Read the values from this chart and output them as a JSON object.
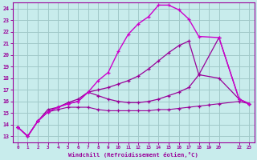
{
  "xlabel": "Windchill (Refroidissement éolien,°C)",
  "ylabel": "",
  "xlim": [
    -0.5,
    23.5
  ],
  "ylim": [
    12.5,
    24.5
  ],
  "xticks": [
    0,
    1,
    2,
    3,
    4,
    5,
    6,
    7,
    8,
    9,
    10,
    11,
    12,
    13,
    14,
    15,
    16,
    17,
    18,
    19,
    20,
    22,
    23
  ],
  "xtick_labels": [
    "0",
    "1",
    "2",
    "3",
    "4",
    "5",
    "6",
    "7",
    "8",
    "9",
    "10",
    "11",
    "12",
    "13",
    "14",
    "15",
    "16",
    "17",
    "18",
    "19",
    "20",
    "22",
    "23"
  ],
  "yticks": [
    13,
    14,
    15,
    16,
    17,
    18,
    19,
    20,
    21,
    22,
    23,
    24
  ],
  "background_color": "#c8ecec",
  "grid_color": "#a0c8c8",
  "line_color": "#990099",
  "line_color2": "#cc00cc",
  "curve_peak": [
    [
      0,
      13.8
    ],
    [
      1,
      13.0
    ],
    [
      2,
      14.3
    ],
    [
      3,
      15.1
    ],
    [
      4,
      15.5
    ],
    [
      5,
      15.8
    ],
    [
      6,
      16.0
    ],
    [
      7,
      16.8
    ],
    [
      8,
      17.8
    ],
    [
      9,
      18.5
    ],
    [
      10,
      20.3
    ],
    [
      11,
      21.8
    ],
    [
      12,
      22.7
    ],
    [
      13,
      23.3
    ],
    [
      14,
      24.3
    ],
    [
      15,
      24.3
    ],
    [
      16,
      23.9
    ],
    [
      17,
      23.1
    ],
    [
      18,
      21.6
    ],
    [
      20,
      21.5
    ],
    [
      22,
      16.2
    ],
    [
      23,
      15.8
    ]
  ],
  "curve_mid": [
    [
      0,
      13.8
    ],
    [
      1,
      13.0
    ],
    [
      2,
      14.3
    ],
    [
      3,
      15.1
    ],
    [
      4,
      15.5
    ],
    [
      5,
      15.8
    ],
    [
      6,
      16.0
    ],
    [
      7,
      16.8
    ],
    [
      8,
      17.0
    ],
    [
      9,
      17.2
    ],
    [
      10,
      17.5
    ],
    [
      11,
      17.8
    ],
    [
      12,
      18.2
    ],
    [
      13,
      18.8
    ],
    [
      14,
      19.5
    ],
    [
      15,
      20.2
    ],
    [
      16,
      20.8
    ],
    [
      17,
      21.2
    ],
    [
      18,
      18.3
    ],
    [
      20,
      21.5
    ],
    [
      22,
      16.2
    ],
    [
      23,
      15.8
    ]
  ],
  "curve_rise": [
    [
      0,
      13.8
    ],
    [
      1,
      13.0
    ],
    [
      2,
      14.3
    ],
    [
      3,
      15.3
    ],
    [
      4,
      15.5
    ],
    [
      5,
      15.9
    ],
    [
      6,
      16.2
    ],
    [
      7,
      16.8
    ],
    [
      8,
      16.5
    ],
    [
      9,
      16.2
    ],
    [
      10,
      16.0
    ],
    [
      11,
      15.9
    ],
    [
      12,
      15.9
    ],
    [
      13,
      16.0
    ],
    [
      14,
      16.2
    ],
    [
      15,
      16.5
    ],
    [
      16,
      16.8
    ],
    [
      17,
      17.2
    ],
    [
      18,
      18.3
    ],
    [
      20,
      18.0
    ],
    [
      22,
      16.2
    ],
    [
      23,
      15.8
    ]
  ],
  "curve_flat": [
    [
      0,
      13.8
    ],
    [
      1,
      13.0
    ],
    [
      2,
      14.3
    ],
    [
      3,
      15.1
    ],
    [
      4,
      15.3
    ],
    [
      5,
      15.5
    ],
    [
      6,
      15.5
    ],
    [
      7,
      15.5
    ],
    [
      8,
      15.3
    ],
    [
      9,
      15.2
    ],
    [
      10,
      15.2
    ],
    [
      11,
      15.2
    ],
    [
      12,
      15.2
    ],
    [
      13,
      15.2
    ],
    [
      14,
      15.3
    ],
    [
      15,
      15.3
    ],
    [
      16,
      15.4
    ],
    [
      17,
      15.5
    ],
    [
      18,
      15.6
    ],
    [
      19,
      15.7
    ],
    [
      20,
      15.8
    ],
    [
      22,
      16.0
    ],
    [
      23,
      15.8
    ]
  ]
}
